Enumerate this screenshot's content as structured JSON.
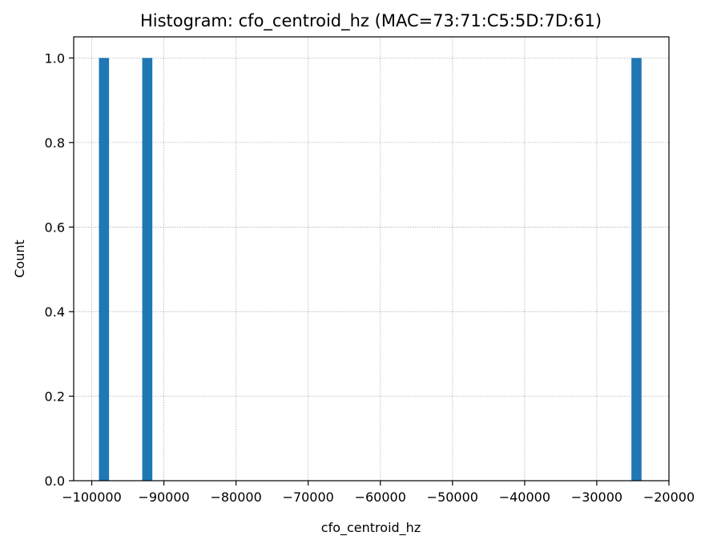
{
  "chart_data": {
    "type": "bar",
    "title": "Histogram: cfo_centroid_hz (MAC=73:71:C5:5D:7D:61)",
    "xlabel": "cfo_centroid_hz",
    "ylabel": "Count",
    "xlim": [
      -102500,
      -20000
    ],
    "ylim": [
      0,
      1.05
    ],
    "x_ticks": [
      -100000,
      -90000,
      -80000,
      -70000,
      -60000,
      -50000,
      -40000,
      -30000,
      -20000
    ],
    "x_tick_labels": [
      "−100000",
      "−90000",
      "−80000",
      "−70000",
      "−60000",
      "−50000",
      "−40000",
      "−30000",
      "−20000"
    ],
    "y_ticks": [
      0.0,
      0.2,
      0.4,
      0.6,
      0.8,
      1.0
    ],
    "y_tick_labels": [
      "0.0",
      "0.2",
      "0.4",
      "0.6",
      "0.8",
      "1.0"
    ],
    "bars": [
      {
        "x0": -99000,
        "x1": -97600,
        "count": 1
      },
      {
        "x0": -93000,
        "x1": -91600,
        "count": 1
      },
      {
        "x0": -25200,
        "x1": -23800,
        "count": 1
      }
    ],
    "grid": true,
    "bar_color": "#1f77b4"
  }
}
